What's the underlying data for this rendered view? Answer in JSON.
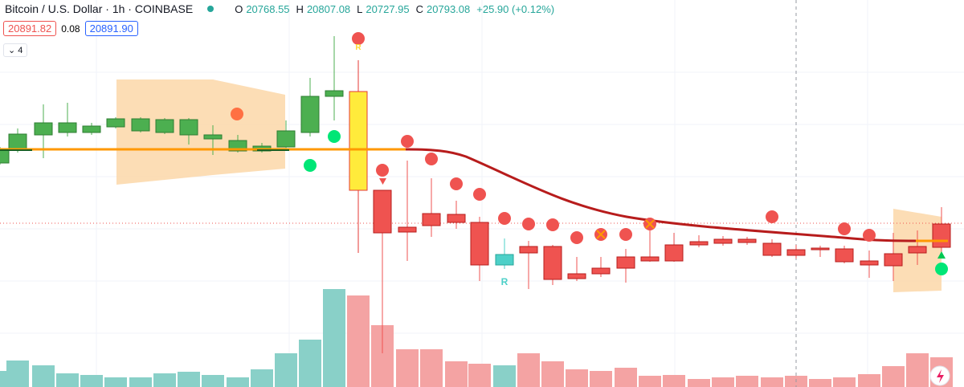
{
  "header": {
    "title": "Bitcoin / U.S. Dollar · 1h · COINBASE",
    "ohlc": [
      {
        "key": "O",
        "value": "20768.55"
      },
      {
        "key": "H",
        "value": "20807.08"
      },
      {
        "key": "L",
        "value": "20727.95"
      },
      {
        "key": "C",
        "value": "20793.08"
      }
    ],
    "change": "+25.90 (+0.12%)"
  },
  "quote": {
    "sell": "20891.82",
    "spread": "0.08",
    "buy": "20891.90"
  },
  "indicators_toggle": "4",
  "markers": [
    "R",
    "R"
  ]
}
